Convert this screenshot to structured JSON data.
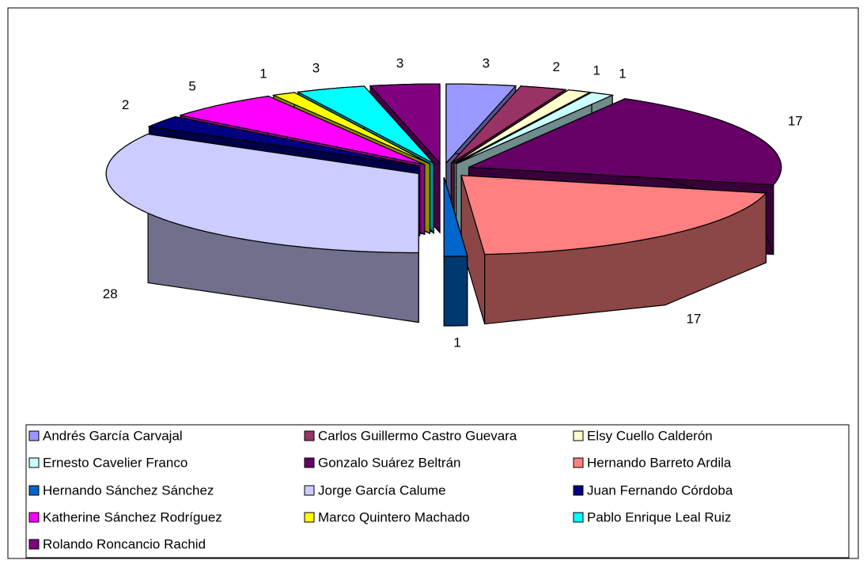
{
  "chart_data": {
    "type": "pie",
    "categories": [
      "Andrés García Carvajal",
      "Carlos Guillermo Castro Guevara",
      "Elsy Cuello Calderón",
      "Ernesto Cavelier Franco",
      "Gonzalo Suárez Beltrán",
      "Hernando Barreto Ardila",
      "Hernando Sánchez Sánchez",
      "Jorge García Calume",
      "Juan Fernando Córdoba",
      "Katherine Sánchez Rodríguez",
      "Marco Quintero Machado",
      "Pablo Enrique Leal Ruiz",
      "Rolando Roncancio Rachid"
    ],
    "values": [
      3,
      2,
      1,
      1,
      17,
      17,
      1,
      28,
      2,
      5,
      1,
      3,
      3
    ],
    "colors": [
      "#9999ff",
      "#993366",
      "#ffffcc",
      "#ccffff",
      "#660066",
      "#ff8080",
      "#0066cc",
      "#ccccff",
      "#000080",
      "#ff00ff",
      "#ffff00",
      "#00ffff",
      "#800080"
    ],
    "legend": "bottom"
  }
}
